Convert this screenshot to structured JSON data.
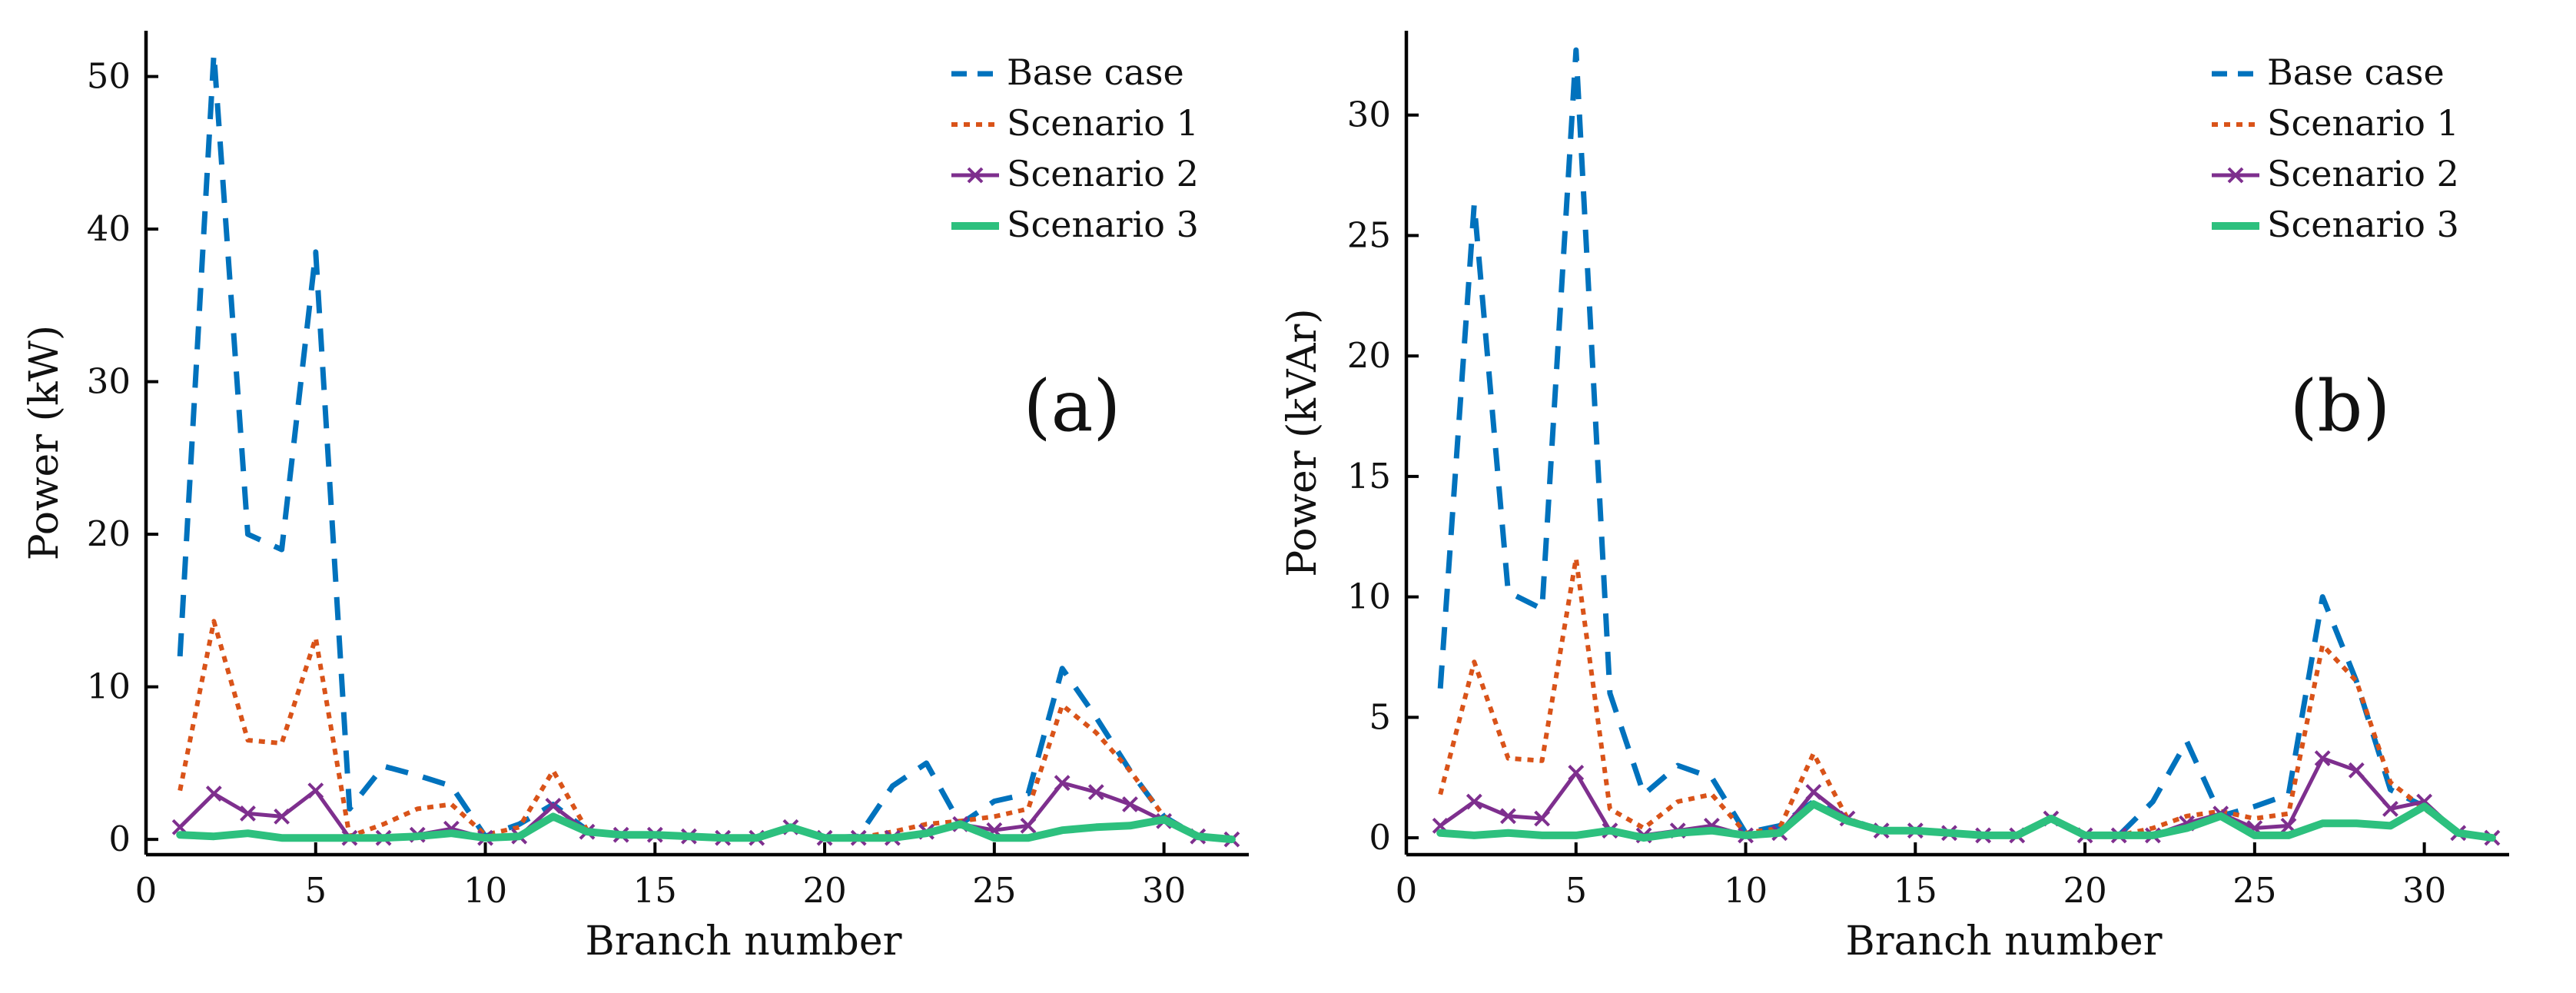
{
  "chart_data": [
    {
      "type": "line",
      "panel_label": "(a)",
      "xlabel": "Branch number",
      "ylabel": "Power (kW)",
      "xlim": [
        0,
        32.5
      ],
      "ylim": [
        -1,
        53
      ],
      "xticks": [
        0,
        5,
        10,
        15,
        20,
        25,
        30
      ],
      "yticks": [
        0,
        10,
        20,
        30,
        40,
        50
      ],
      "legend_position": "top-right",
      "x": [
        1,
        2,
        3,
        4,
        5,
        6,
        7,
        8,
        9,
        10,
        11,
        12,
        13,
        14,
        15,
        16,
        17,
        18,
        19,
        20,
        21,
        22,
        23,
        24,
        25,
        26,
        27,
        28,
        29,
        30,
        31,
        32
      ],
      "series": [
        {
          "name": "Base case",
          "color": "#0072BD",
          "style": "dashed",
          "values": [
            12.0,
            51.5,
            20.0,
            19.0,
            38.5,
            2.0,
            4.8,
            4.2,
            3.5,
            0.2,
            1.0,
            2.3,
            0.6,
            0.3,
            0.3,
            0.2,
            0.1,
            0.1,
            0.8,
            0.1,
            0.2,
            3.5,
            5.0,
            1.0,
            2.5,
            3.0,
            11.2,
            8.0,
            4.5,
            1.5,
            0.2,
            0.0
          ]
        },
        {
          "name": "Scenario 1",
          "color": "#D95319",
          "style": "dotted",
          "values": [
            3.2,
            14.3,
            6.5,
            6.3,
            13.2,
            0.2,
            1.0,
            2.0,
            2.3,
            0.3,
            0.8,
            4.5,
            0.6,
            0.3,
            0.3,
            0.2,
            0.1,
            0.1,
            0.8,
            0.1,
            0.1,
            0.5,
            1.0,
            1.2,
            1.5,
            2.0,
            8.8,
            7.0,
            4.5,
            1.5,
            0.2,
            0.0
          ]
        },
        {
          "name": "Scenario 2",
          "color": "#7E2F8E",
          "style": "solid-x",
          "values": [
            0.8,
            3.0,
            1.7,
            1.5,
            3.2,
            0.1,
            0.1,
            0.3,
            0.7,
            0.1,
            0.2,
            2.2,
            0.5,
            0.3,
            0.3,
            0.2,
            0.1,
            0.1,
            0.8,
            0.1,
            0.1,
            0.1,
            0.5,
            1.0,
            0.6,
            0.9,
            3.7,
            3.1,
            2.3,
            1.2,
            0.2,
            0.0
          ]
        },
        {
          "name": "Scenario 3",
          "color": "#2DC07E",
          "style": "solid-thick",
          "values": [
            0.3,
            0.2,
            0.4,
            0.1,
            0.1,
            0.1,
            0.1,
            0.2,
            0.4,
            0.1,
            0.2,
            1.5,
            0.5,
            0.3,
            0.3,
            0.2,
            0.1,
            0.1,
            0.8,
            0.1,
            0.1,
            0.1,
            0.4,
            1.0,
            0.1,
            0.1,
            0.6,
            0.8,
            0.9,
            1.3,
            0.2,
            0.0
          ]
        }
      ]
    },
    {
      "type": "line",
      "panel_label": "(b)",
      "xlabel": "Branch number",
      "ylabel": "Power (kVAr)",
      "xlim": [
        0,
        32.5
      ],
      "ylim": [
        -0.7,
        33.5
      ],
      "xticks": [
        0,
        5,
        10,
        15,
        20,
        25,
        30
      ],
      "yticks": [
        0,
        5,
        10,
        15,
        20,
        25,
        30
      ],
      "legend_position": "top-right",
      "x": [
        1,
        2,
        3,
        4,
        5,
        6,
        7,
        8,
        9,
        10,
        11,
        12,
        13,
        14,
        15,
        16,
        17,
        18,
        19,
        20,
        21,
        22,
        23,
        24,
        25,
        26,
        27,
        28,
        29,
        30,
        31,
        32
      ],
      "series": [
        {
          "name": "Base case",
          "color": "#0072BD",
          "style": "dashed",
          "values": [
            6.2,
            26.3,
            10.2,
            9.5,
            32.7,
            6.0,
            1.8,
            3.0,
            2.5,
            0.2,
            0.5,
            1.5,
            0.8,
            0.3,
            0.3,
            0.2,
            0.1,
            0.1,
            0.8,
            0.1,
            0.1,
            1.5,
            4.0,
            0.9,
            1.3,
            1.8,
            10.0,
            6.5,
            2.0,
            1.3,
            0.2,
            0.0
          ]
        },
        {
          "name": "Scenario 1",
          "color": "#D95319",
          "style": "dotted",
          "values": [
            1.8,
            7.3,
            3.3,
            3.2,
            11.6,
            1.2,
            0.4,
            1.5,
            1.8,
            0.2,
            0.4,
            3.5,
            0.8,
            0.3,
            0.3,
            0.2,
            0.1,
            0.1,
            0.8,
            0.1,
            0.1,
            0.4,
            0.9,
            1.1,
            0.8,
            1.0,
            8.0,
            6.5,
            2.3,
            1.2,
            0.2,
            0.0
          ]
        },
        {
          "name": "Scenario 2",
          "color": "#7E2F8E",
          "style": "solid-x",
          "values": [
            0.5,
            1.5,
            0.9,
            0.8,
            2.7,
            0.3,
            0.1,
            0.3,
            0.5,
            0.1,
            0.2,
            1.9,
            0.8,
            0.3,
            0.3,
            0.2,
            0.1,
            0.1,
            0.8,
            0.1,
            0.1,
            0.1,
            0.6,
            1.0,
            0.4,
            0.5,
            3.3,
            2.8,
            1.2,
            1.5,
            0.2,
            0.0
          ]
        },
        {
          "name": "Scenario 3",
          "color": "#2DC07E",
          "style": "solid-thick",
          "values": [
            0.2,
            0.1,
            0.2,
            0.1,
            0.1,
            0.3,
            0.0,
            0.2,
            0.3,
            0.1,
            0.2,
            1.4,
            0.7,
            0.3,
            0.3,
            0.2,
            0.1,
            0.1,
            0.8,
            0.1,
            0.1,
            0.1,
            0.4,
            0.9,
            0.1,
            0.1,
            0.6,
            0.6,
            0.5,
            1.3,
            0.2,
            0.0
          ]
        }
      ]
    }
  ]
}
